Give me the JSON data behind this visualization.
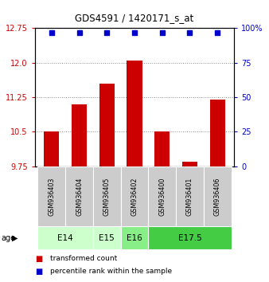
{
  "title": "GDS4591 / 1420171_s_at",
  "samples": [
    "GSM936403",
    "GSM936404",
    "GSM936405",
    "GSM936402",
    "GSM936400",
    "GSM936401",
    "GSM936406"
  ],
  "bar_values": [
    10.5,
    11.1,
    11.55,
    12.05,
    10.5,
    9.85,
    11.2
  ],
  "age_groups": [
    {
      "label": "E14",
      "start": 0,
      "end": 2,
      "color": "#ccffcc"
    },
    {
      "label": "E15",
      "start": 2,
      "end": 3,
      "color": "#ccffcc"
    },
    {
      "label": "E16",
      "start": 3,
      "end": 4,
      "color": "#88ee88"
    },
    {
      "label": "E17.5",
      "start": 4,
      "end": 7,
      "color": "#44cc44"
    }
  ],
  "ylim_left": [
    9.75,
    12.75
  ],
  "ylim_right": [
    0,
    100
  ],
  "yticks_left": [
    9.75,
    10.5,
    11.25,
    12.0,
    12.75
  ],
  "yticks_right": [
    0,
    25,
    50,
    75,
    100
  ],
  "bar_color": "#cc0000",
  "percentile_color": "#0000cc",
  "grid_color": "#888888",
  "sample_box_color": "#cccccc",
  "bar_width": 0.55
}
